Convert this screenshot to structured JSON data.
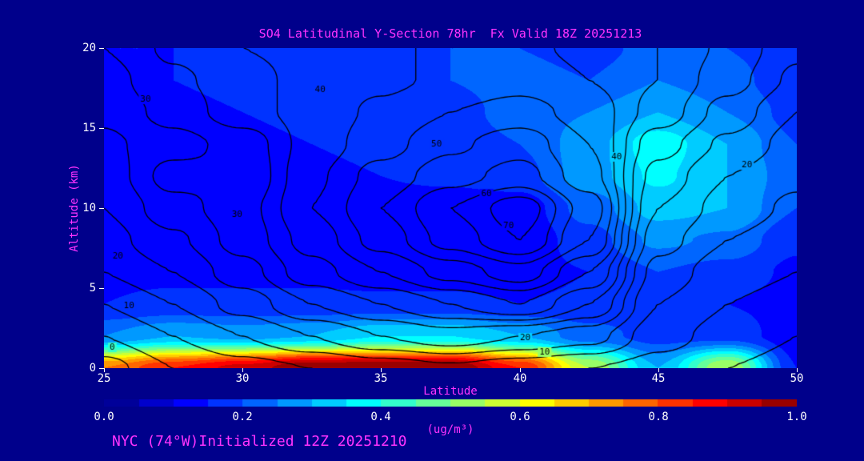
{
  "colors": {
    "background": "#00008b",
    "magenta": "#ff33ff",
    "tick_text": "#ffffff",
    "contour_line": "#000000"
  },
  "title": "SO4 Latitudinal Y-Section 78hr  Fx Valid 18Z 20251213",
  "caption": "NYC (74°W)Initialized 12Z 20251210",
  "axes": {
    "y": {
      "label": "Altitude (km)",
      "ticks": [
        "20",
        "15",
        "10",
        "5",
        "0"
      ]
    },
    "x": {
      "label": "Latitude",
      "ticks": [
        "25",
        "30",
        "35",
        "40",
        "45",
        "50"
      ]
    }
  },
  "colorbar": {
    "units": "(ug/m³)",
    "ticks": [
      "0.0",
      "0.2",
      "0.4",
      "0.6",
      "0.8",
      "1.0"
    ]
  },
  "chart_data": {
    "type": "contour",
    "title": "SO4 Latitudinal Y-Section 78hr Fx Valid 18Z 20251213",
    "xlabel": "Latitude",
    "ylabel": "Altitude (km)",
    "x_latitudes": [
      25,
      27.5,
      30,
      32.5,
      35,
      37.5,
      40,
      42.5,
      45,
      47.5,
      50
    ],
    "y_altitudes_km": [
      20,
      18,
      16,
      14,
      12,
      10,
      8,
      6,
      4,
      2,
      0
    ],
    "fill_variable": "SO4 concentration",
    "fill_units": "ug/m3",
    "fill_range": [
      0,
      1
    ],
    "fill_step": 0.05,
    "colormap": "jet",
    "fill_grid": [
      [
        0.15,
        0.15,
        0.16,
        0.18,
        0.18,
        0.2,
        0.2,
        0.18,
        0.22,
        0.2,
        0.16
      ],
      [
        0.14,
        0.15,
        0.16,
        0.17,
        0.18,
        0.2,
        0.22,
        0.2,
        0.25,
        0.22,
        0.16
      ],
      [
        0.13,
        0.14,
        0.15,
        0.16,
        0.17,
        0.18,
        0.22,
        0.25,
        0.3,
        0.25,
        0.18
      ],
      [
        0.12,
        0.13,
        0.14,
        0.15,
        0.16,
        0.17,
        0.2,
        0.28,
        0.38,
        0.3,
        0.2
      ],
      [
        0.12,
        0.1,
        0.12,
        0.14,
        0.15,
        0.16,
        0.18,
        0.28,
        0.36,
        0.3,
        0.22
      ],
      [
        0.12,
        0.1,
        0.12,
        0.13,
        0.13,
        0.12,
        0.12,
        0.22,
        0.32,
        0.3,
        0.2
      ],
      [
        0.13,
        0.12,
        0.13,
        0.13,
        0.12,
        0.11,
        0.11,
        0.18,
        0.26,
        0.24,
        0.16
      ],
      [
        0.14,
        0.14,
        0.14,
        0.14,
        0.13,
        0.13,
        0.13,
        0.15,
        0.2,
        0.18,
        0.14
      ],
      [
        0.15,
        0.16,
        0.16,
        0.16,
        0.16,
        0.16,
        0.15,
        0.16,
        0.18,
        0.15,
        0.13
      ],
      [
        0.25,
        0.3,
        0.28,
        0.3,
        0.35,
        0.35,
        0.3,
        0.22,
        0.18,
        0.18,
        0.12
      ],
      [
        0.75,
        0.85,
        0.92,
        1.0,
        1.0,
        1.0,
        0.85,
        0.55,
        0.3,
        0.55,
        0.15
      ]
    ],
    "contour_levels": [
      0,
      5,
      10,
      15,
      20,
      25,
      30,
      35,
      40,
      45,
      50,
      55,
      60,
      65,
      70,
      75
    ],
    "contour_label_interval": 10,
    "contour_grid": [
      [
        30,
        36,
        40,
        42,
        44,
        46,
        46,
        44,
        40,
        34,
        26
      ],
      [
        28,
        34,
        38,
        42,
        44,
        46,
        48,
        45,
        40,
        32,
        24
      ],
      [
        26,
        32,
        38,
        42,
        46,
        50,
        52,
        48,
        38,
        28,
        20
      ],
      [
        24,
        28,
        32,
        42,
        48,
        54,
        58,
        50,
        32,
        24,
        18
      ],
      [
        22,
        32,
        30,
        44,
        52,
        58,
        62,
        52,
        28,
        20,
        16
      ],
      [
        20,
        28,
        33,
        45,
        55,
        65,
        73,
        58,
        25,
        18,
        14
      ],
      [
        18,
        24,
        32,
        42,
        52,
        62,
        70,
        55,
        22,
        15,
        12
      ],
      [
        15,
        20,
        28,
        38,
        45,
        52,
        58,
        45,
        18,
        12,
        10
      ],
      [
        10,
        15,
        22,
        30,
        35,
        40,
        45,
        35,
        15,
        10,
        8
      ],
      [
        5,
        10,
        15,
        20,
        25,
        28,
        25,
        22,
        12,
        8,
        5
      ],
      [
        -2,
        5,
        8,
        10,
        12,
        14,
        12,
        10,
        8,
        5,
        3
      ]
    ],
    "contour_labels": [
      {
        "text": "30",
        "lat": 26.5,
        "km": 16.8
      },
      {
        "text": "40",
        "lat": 32.8,
        "km": 17.4
      },
      {
        "text": "50",
        "lat": 37.0,
        "km": 14.0
      },
      {
        "text": "60",
        "lat": 38.8,
        "km": 10.9
      },
      {
        "text": "70",
        "lat": 39.6,
        "km": 8.9
      },
      {
        "text": "40",
        "lat": 43.5,
        "km": 13.2
      },
      {
        "text": "20",
        "lat": 48.2,
        "km": 12.7
      },
      {
        "text": "30",
        "lat": 29.8,
        "km": 9.6
      },
      {
        "text": "20",
        "lat": 25.5,
        "km": 7.0
      },
      {
        "text": "10",
        "lat": 25.9,
        "km": 3.9
      },
      {
        "text": "0",
        "lat": 25.3,
        "km": 1.3
      },
      {
        "text": "20",
        "lat": 40.2,
        "km": 1.9
      },
      {
        "text": "10",
        "lat": 40.9,
        "km": 1.0
      }
    ]
  }
}
